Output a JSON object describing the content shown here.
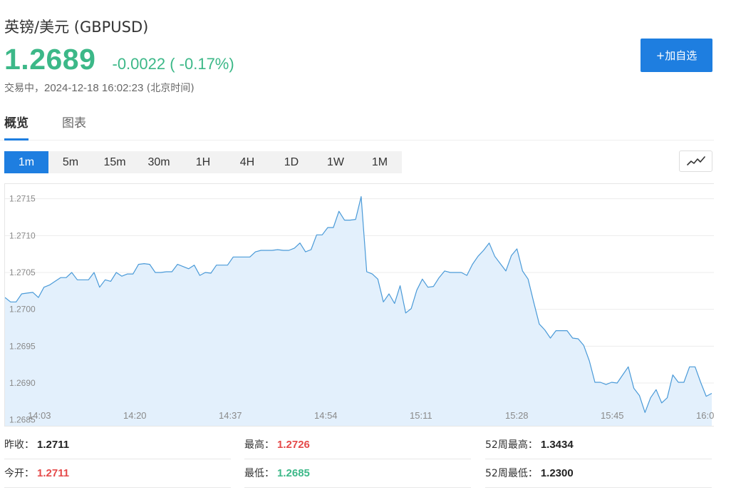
{
  "header": {
    "title": "英镑/美元  (GBPUSD)",
    "price": "1.2689",
    "change": "-0.0022 ( -0.17%)",
    "status_label": "交易中，",
    "timestamp": "2024-12-18 16:02:23",
    "timezone": " (北京时间)",
    "add_button": "+加自选",
    "price_color": "#3cb888",
    "accent_color": "#1e7ee0"
  },
  "tabs": [
    {
      "label": "概览",
      "active": true
    },
    {
      "label": "图表",
      "active": false
    }
  ],
  "periods": [
    {
      "label": "1m",
      "active": true
    },
    {
      "label": "5m"
    },
    {
      "label": "15m"
    },
    {
      "label": "30m"
    },
    {
      "label": "1H"
    },
    {
      "label": "4H"
    },
    {
      "label": "1D"
    },
    {
      "label": "1W"
    },
    {
      "label": "1M"
    }
  ],
  "chart_toggle_icon": "line-chart-icon",
  "chart_data": {
    "type": "area",
    "ylim": [
      1.2684,
      1.2717
    ],
    "yticks": [
      "1.2685",
      "1.2690",
      "1.2695",
      "1.2700",
      "1.2705",
      "1.2710",
      "1.2715"
    ],
    "xticks": [
      "14:03",
      "14:20",
      "14:37",
      "14:54",
      "15:11",
      "15:28",
      "15:45",
      "16:0"
    ],
    "grid": true,
    "line_color": "#4a9ad8",
    "fill_color": "#e3f0fc",
    "values": [
      1.27016,
      1.2701,
      1.2701,
      1.27021,
      1.27022,
      1.27023,
      1.27016,
      1.2703,
      1.27033,
      1.27038,
      1.27043,
      1.27043,
      1.2705,
      1.2704,
      1.2704,
      1.2704,
      1.2705,
      1.2703,
      1.2704,
      1.27038,
      1.2705,
      1.27045,
      1.27048,
      1.27048,
      1.27061,
      1.27062,
      1.27061,
      1.2705,
      1.2705,
      1.27051,
      1.27051,
      1.27061,
      1.27058,
      1.27055,
      1.2706,
      1.27046,
      1.2705,
      1.27049,
      1.2706,
      1.2706,
      1.2706,
      1.27071,
      1.27071,
      1.27071,
      1.27071,
      1.27078,
      1.2708,
      1.2708,
      1.2708,
      1.27081,
      1.2708,
      1.2708,
      1.27083,
      1.2709,
      1.27078,
      1.27081,
      1.27101,
      1.27101,
      1.27111,
      1.27111,
      1.27133,
      1.27121,
      1.27121,
      1.27122,
      1.27153,
      1.27051,
      1.27048,
      1.27041,
      1.2701,
      1.27021,
      1.27008,
      1.27032,
      1.26995,
      1.27001,
      1.27026,
      1.27041,
      1.2703,
      1.27031,
      1.27043,
      1.27052,
      1.2705,
      1.2705,
      1.2705,
      1.27046,
      1.27061,
      1.27072,
      1.2708,
      1.2709,
      1.27072,
      1.27062,
      1.27052,
      1.27073,
      1.27082,
      1.27052,
      1.27041,
      1.2701,
      1.2698,
      1.26972,
      1.26961,
      1.26971,
      1.26971,
      1.26971,
      1.26961,
      1.2696,
      1.26951,
      1.2693,
      1.26901,
      1.26901,
      1.26898,
      1.26901,
      1.269,
      1.26911,
      1.26922,
      1.26893,
      1.26883,
      1.2686,
      1.2688,
      1.26891,
      1.26873,
      1.2688,
      1.26911,
      1.26901,
      1.26901,
      1.26922,
      1.26922,
      1.26901,
      1.26882,
      1.26886
    ]
  },
  "stats": {
    "prev_close_label": "昨收：",
    "prev_close": "1.2711",
    "high_label": "最高：",
    "high": "1.2726",
    "week52_high_label": "52周最高：",
    "week52_high": "1.3434",
    "open_label": "今开：",
    "open": "1.2711",
    "low_label": "最低：",
    "low": "1.2685",
    "week52_low_label": "52周最低：",
    "week52_low": "1.2300"
  }
}
